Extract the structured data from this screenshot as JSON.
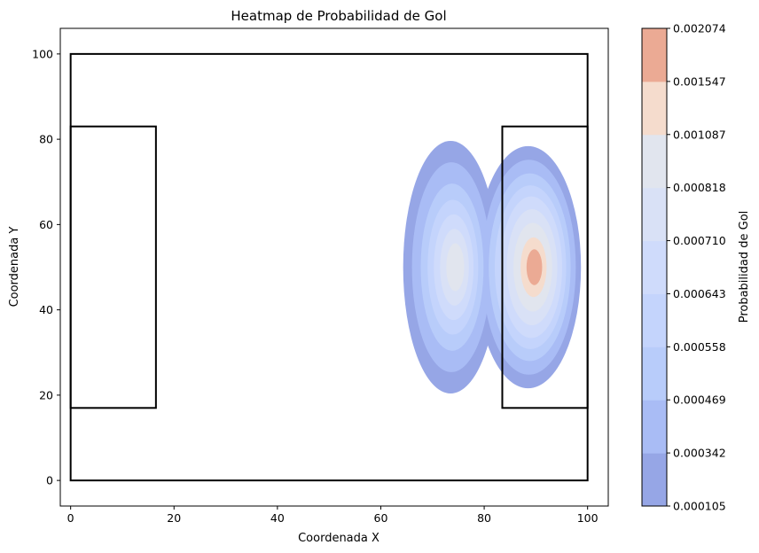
{
  "chart_data": {
    "type": "heatmap",
    "title": "Heatmap de Probabilidad de Gol",
    "xlabel": "Coordenada X",
    "ylabel": "Coordenada Y",
    "xlim": [
      -2,
      104
    ],
    "ylim": [
      -6,
      106
    ],
    "xticks": [
      0,
      20,
      40,
      60,
      80,
      100
    ],
    "yticks": [
      0,
      20,
      40,
      60,
      80,
      100
    ],
    "grid": false,
    "colorbar": {
      "label": "Probabilidad de Gol",
      "levels": [
        "0.000105",
        "0.000342",
        "0.000469",
        "0.000558",
        "0.000643",
        "0.000710",
        "0.000818",
        "0.001087",
        "0.001547",
        "0.002074"
      ],
      "colors": [
        "#96a6e6",
        "#a9bcf5",
        "#b8ccfa",
        "#c4d4fc",
        "#cfdbfb",
        "#d9e1f6",
        "#e1e5ee",
        "#f5dccd",
        "#ebaa94"
      ]
    },
    "pitch": {
      "outer": [
        [
          0,
          0
        ],
        [
          100,
          100
        ]
      ],
      "left_box": [
        [
          0,
          17
        ],
        [
          16.5,
          83
        ]
      ],
      "right_box": [
        [
          83.5,
          17
        ],
        [
          100,
          83
        ]
      ]
    },
    "density_hotspots": [
      {
        "x": 74,
        "y": 50,
        "peak_level": "0.000818"
      },
      {
        "x": 90,
        "y": 50,
        "peak_level": "0.002074"
      }
    ]
  }
}
